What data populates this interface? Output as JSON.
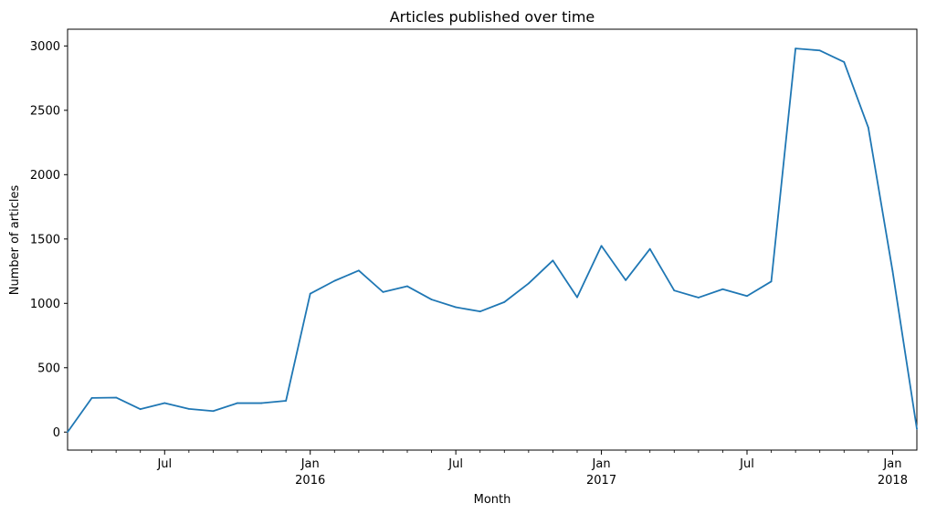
{
  "chart_data": {
    "type": "line",
    "title": "Articles published over time",
    "xlabel": "Month",
    "ylabel": "Number of articles",
    "grid": false,
    "legend": "none",
    "ylim": [
      -140,
      3130
    ],
    "xlim": [
      "2015-03",
      "2018-02"
    ],
    "yticks": [
      0,
      500,
      1000,
      1500,
      2000,
      2500,
      3000
    ],
    "xticks_major": [
      {
        "date": "2015-07",
        "label": "Jul",
        "sublabel": ""
      },
      {
        "date": "2016-01",
        "label": "Jan",
        "sublabel": "2016"
      },
      {
        "date": "2016-07",
        "label": "Jul",
        "sublabel": ""
      },
      {
        "date": "2017-01",
        "label": "Jan",
        "sublabel": "2017"
      },
      {
        "date": "2017-07",
        "label": "Jul",
        "sublabel": ""
      },
      {
        "date": "2018-01",
        "label": "Jan",
        "sublabel": "2018"
      }
    ],
    "series": [
      {
        "color": "#1f77b4",
        "x": [
          "2015-03",
          "2015-04",
          "2015-05",
          "2015-06",
          "2015-07",
          "2015-08",
          "2015-09",
          "2015-10",
          "2015-11",
          "2015-12",
          "2016-01",
          "2016-02",
          "2016-03",
          "2016-04",
          "2016-05",
          "2016-06",
          "2016-07",
          "2016-08",
          "2016-09",
          "2016-10",
          "2016-11",
          "2016-12",
          "2017-01",
          "2017-02",
          "2017-03",
          "2017-04",
          "2017-05",
          "2017-06",
          "2017-07",
          "2017-08",
          "2017-09",
          "2017-10",
          "2017-11",
          "2017-12",
          "2018-01",
          "2018-02"
        ],
        "values": [
          0,
          265,
          268,
          178,
          225,
          180,
          163,
          225,
          225,
          243,
          1075,
          1175,
          1255,
          1088,
          1133,
          1030,
          970,
          937,
          1010,
          1155,
          1333,
          1047,
          1447,
          1180,
          1423,
          1100,
          1045,
          1110,
          1057,
          1170,
          2980,
          2965,
          2875,
          2365,
          1250,
          25
        ]
      }
    ]
  }
}
